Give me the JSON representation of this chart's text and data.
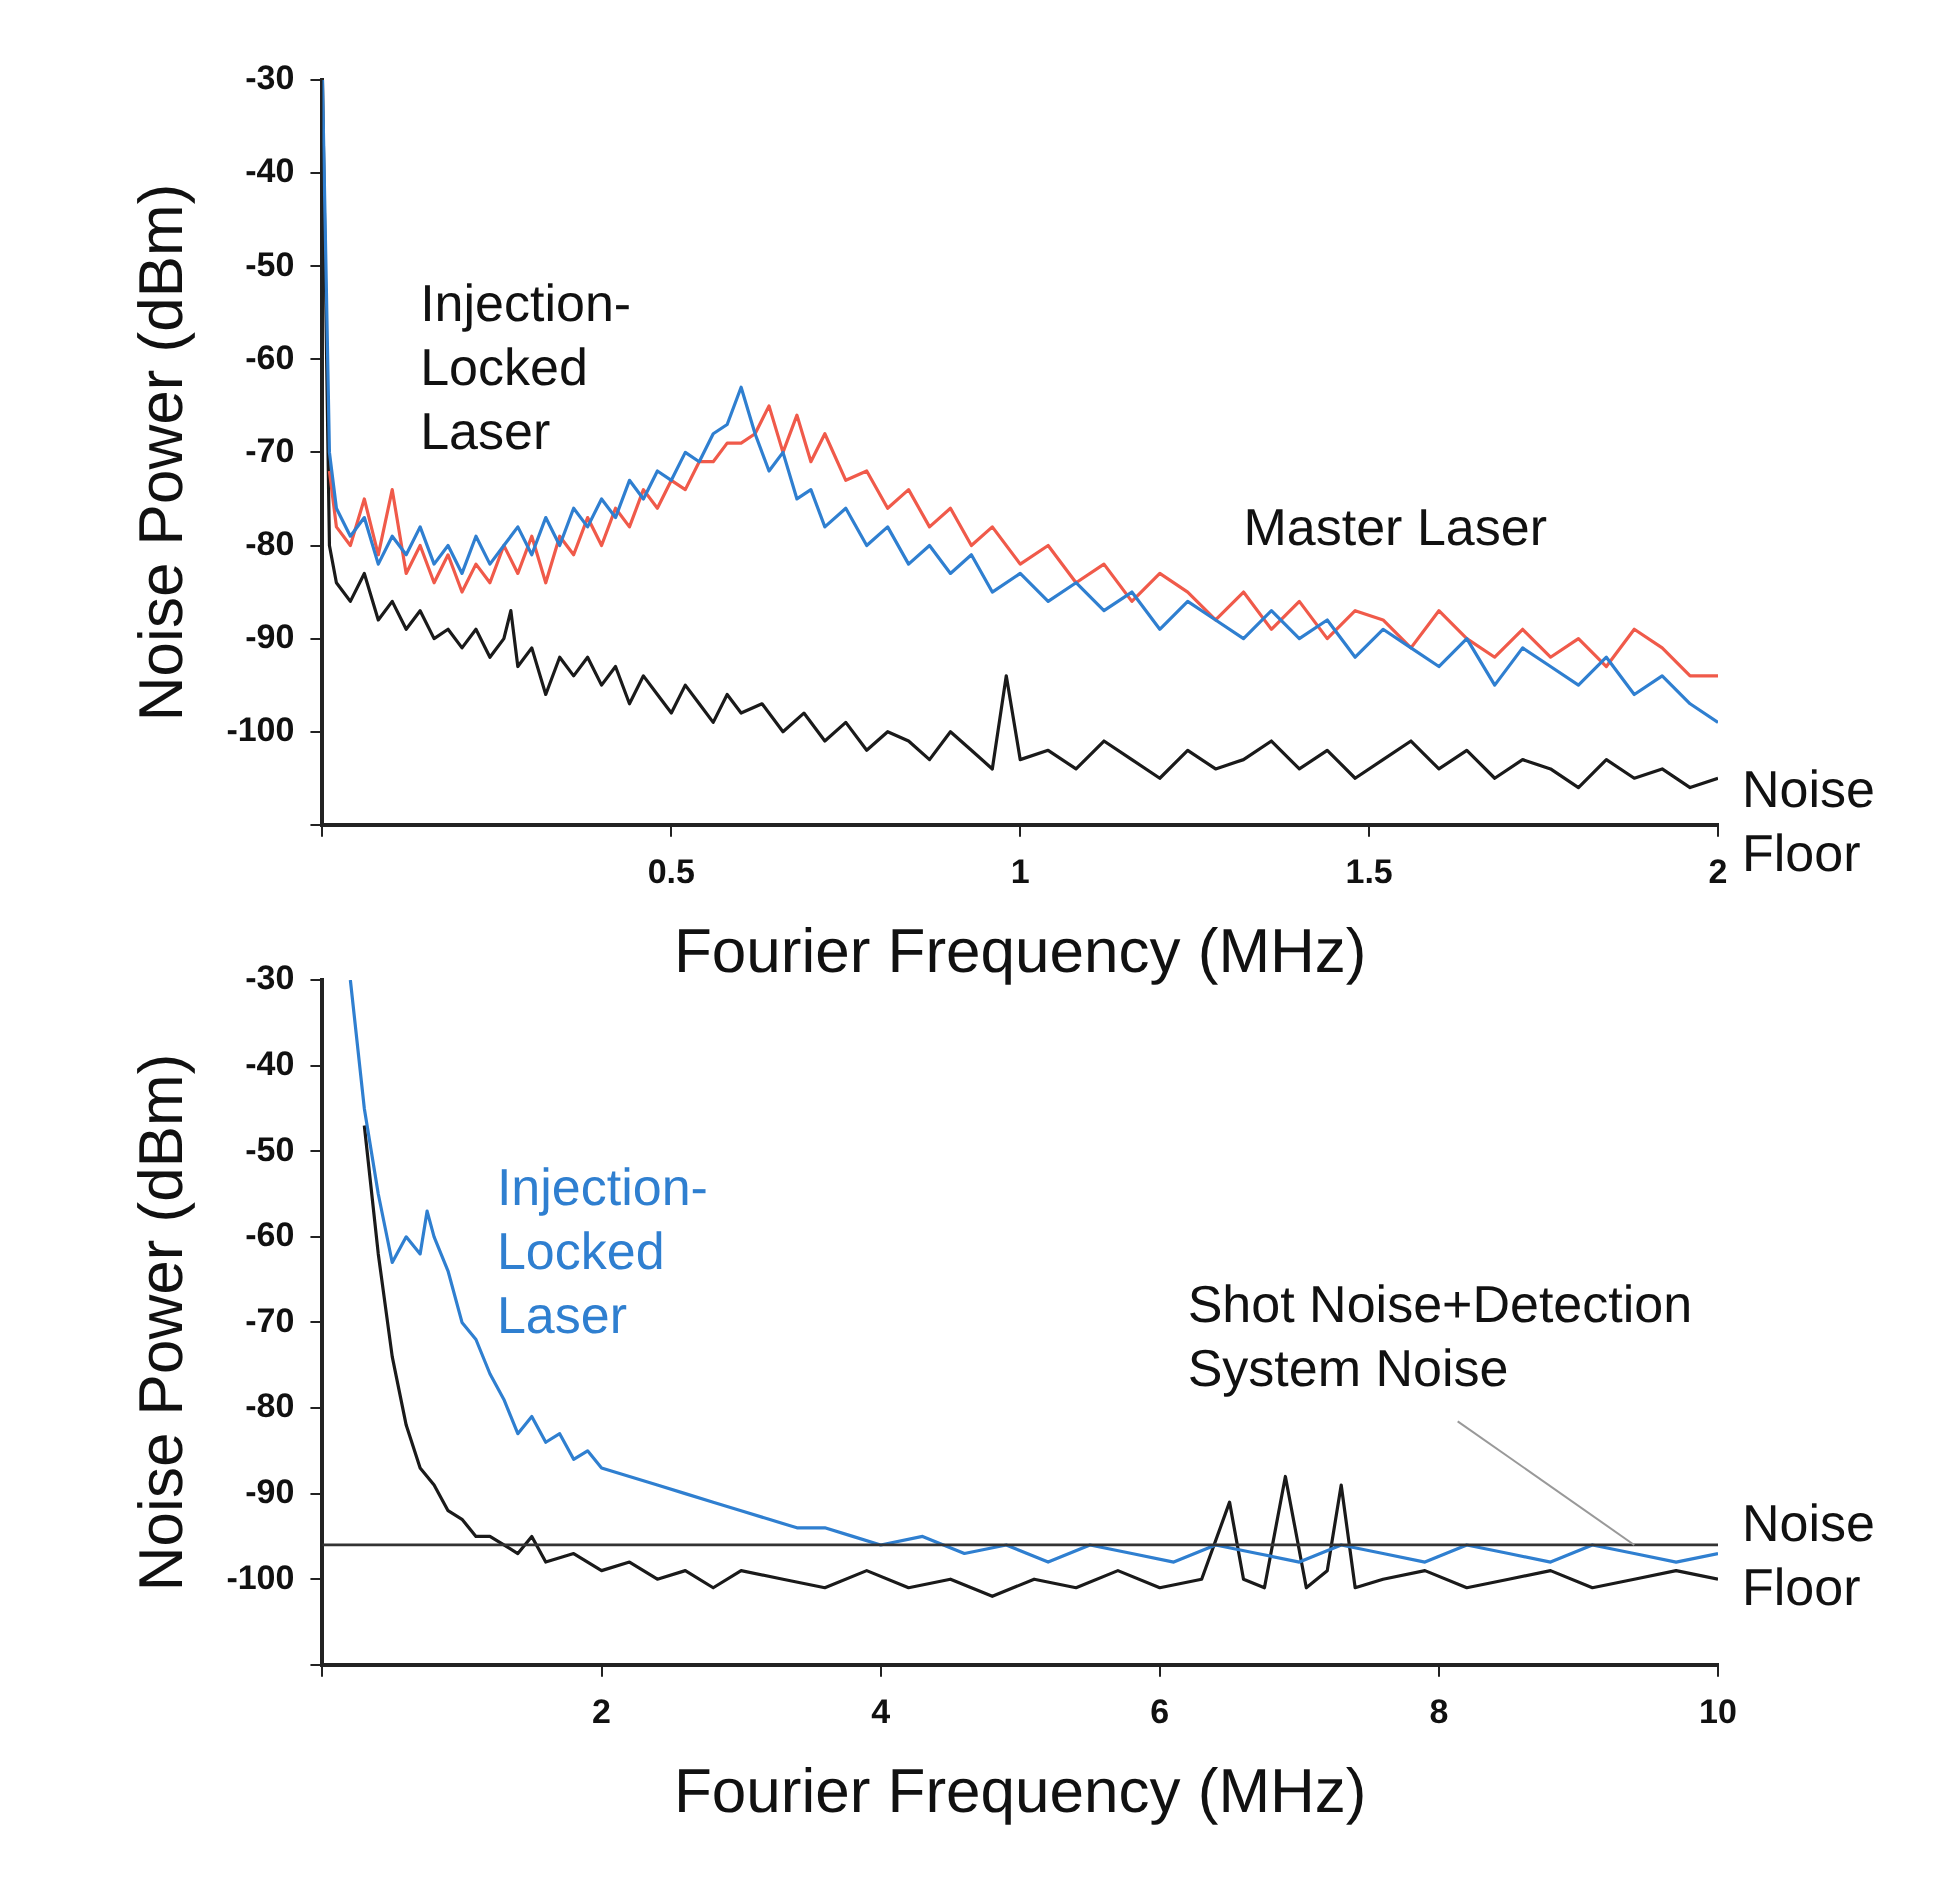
{
  "chart_data": [
    {
      "type": "line",
      "xlabel": "Fourier Frequency (MHz)",
      "ylabel": "Noise Power (dBm)",
      "xlim": [
        0,
        2
      ],
      "ylim": [
        -110,
        -30
      ],
      "xticks": [
        {
          "value": 0,
          "label": null
        },
        0.5,
        1,
        1.5,
        2
      ],
      "yticks": [
        {
          "value": -110,
          "label": null
        },
        -100,
        -90,
        -80,
        -70,
        -60,
        -50,
        -40,
        -30
      ],
      "legend": false,
      "marker": "none",
      "line_style": "solid",
      "series": [
        {
          "name": "Injection-Locked Laser",
          "color": "#2f7fd0",
          "x": [
            0,
            0.01,
            0.02,
            0.04,
            0.06,
            0.08,
            0.1,
            0.12,
            0.14,
            0.16,
            0.18,
            0.2,
            0.22,
            0.24,
            0.26,
            0.28,
            0.3,
            0.32,
            0.34,
            0.36,
            0.38,
            0.4,
            0.42,
            0.44,
            0.46,
            0.48,
            0.5,
            0.52,
            0.54,
            0.56,
            0.58,
            0.6,
            0.62,
            0.64,
            0.66,
            0.68,
            0.7,
            0.72,
            0.75,
            0.78,
            0.81,
            0.84,
            0.87,
            0.9,
            0.93,
            0.96,
            1,
            1.04,
            1.08,
            1.12,
            1.16,
            1.2,
            1.24,
            1.28,
            1.32,
            1.36,
            1.4,
            1.44,
            1.48,
            1.52,
            1.56,
            1.6,
            1.64,
            1.68,
            1.72,
            1.76,
            1.8,
            1.84,
            1.88,
            1.92,
            1.96,
            2
          ],
          "values": [
            -30,
            -70,
            -76,
            -79,
            -77,
            -82,
            -79,
            -81,
            -78,
            -82,
            -80,
            -83,
            -79,
            -82,
            -80,
            -78,
            -81,
            -77,
            -80,
            -76,
            -78,
            -75,
            -77,
            -73,
            -75,
            -72,
            -73,
            -70,
            -71,
            -68,
            -67,
            -63,
            -68,
            -72,
            -70,
            -75,
            -74,
            -78,
            -76,
            -80,
            -78,
            -82,
            -80,
            -83,
            -81,
            -85,
            -83,
            -86,
            -84,
            -87,
            -85,
            -89,
            -86,
            -88,
            -90,
            -87,
            -90,
            -88,
            -92,
            -89,
            -91,
            -93,
            -90,
            -95,
            -91,
            -93,
            -95,
            -92,
            -96,
            -94,
            -97,
            -99
          ]
        },
        {
          "name": "Master Laser",
          "color": "#f05a4a",
          "x": [
            0.01,
            0.02,
            0.04,
            0.06,
            0.08,
            0.1,
            0.12,
            0.14,
            0.16,
            0.18,
            0.2,
            0.22,
            0.24,
            0.26,
            0.28,
            0.3,
            0.32,
            0.34,
            0.36,
            0.38,
            0.4,
            0.42,
            0.44,
            0.46,
            0.48,
            0.5,
            0.52,
            0.54,
            0.56,
            0.58,
            0.6,
            0.62,
            0.64,
            0.66,
            0.68,
            0.7,
            0.72,
            0.75,
            0.78,
            0.81,
            0.84,
            0.87,
            0.9,
            0.93,
            0.96,
            1,
            1.04,
            1.08,
            1.12,
            1.16,
            1.2,
            1.24,
            1.28,
            1.32,
            1.36,
            1.4,
            1.44,
            1.48,
            1.52,
            1.56,
            1.6,
            1.64,
            1.68,
            1.72,
            1.76,
            1.8,
            1.84,
            1.88,
            1.92,
            1.96,
            2
          ],
          "values": [
            -72,
            -78,
            -80,
            -75,
            -81,
            -74,
            -83,
            -80,
            -84,
            -81,
            -85,
            -82,
            -84,
            -80,
            -83,
            -79,
            -84,
            -79,
            -81,
            -77,
            -80,
            -76,
            -78,
            -74,
            -76,
            -73,
            -74,
            -71,
            -71,
            -69,
            -69,
            -68,
            -65,
            -70,
            -66,
            -71,
            -68,
            -73,
            -72,
            -76,
            -74,
            -78,
            -76,
            -80,
            -78,
            -82,
            -80,
            -84,
            -82,
            -86,
            -83,
            -85,
            -88,
            -85,
            -89,
            -86,
            -90,
            -87,
            -88,
            -91,
            -87,
            -90,
            -92,
            -89,
            -92,
            -90,
            -93,
            -89,
            -91,
            -94,
            -94
          ]
        },
        {
          "name": "Noise Floor",
          "color": "#1a1a1a",
          "x": [
            0,
            0.01,
            0.02,
            0.04,
            0.06,
            0.08,
            0.1,
            0.12,
            0.14,
            0.16,
            0.18,
            0.2,
            0.22,
            0.24,
            0.26,
            0.27,
            0.28,
            0.3,
            0.32,
            0.34,
            0.36,
            0.38,
            0.4,
            0.42,
            0.44,
            0.46,
            0.48,
            0.5,
            0.52,
            0.54,
            0.56,
            0.58,
            0.6,
            0.63,
            0.66,
            0.69,
            0.72,
            0.75,
            0.78,
            0.81,
            0.84,
            0.87,
            0.9,
            0.93,
            0.96,
            0.98,
            1,
            1.04,
            1.08,
            1.12,
            1.16,
            1.2,
            1.24,
            1.28,
            1.32,
            1.36,
            1.4,
            1.44,
            1.48,
            1.52,
            1.56,
            1.6,
            1.64,
            1.68,
            1.72,
            1.76,
            1.8,
            1.84,
            1.88,
            1.92,
            1.96,
            2
          ],
          "values": [
            -30,
            -80,
            -84,
            -86,
            -83,
            -88,
            -86,
            -89,
            -87,
            -90,
            -89,
            -91,
            -89,
            -92,
            -90,
            -87,
            -93,
            -91,
            -96,
            -92,
            -94,
            -92,
            -95,
            -93,
            -97,
            -94,
            -96,
            -98,
            -95,
            -97,
            -99,
            -96,
            -98,
            -97,
            -100,
            -98,
            -101,
            -99,
            -102,
            -100,
            -101,
            -103,
            -100,
            -102,
            -104,
            -94,
            -103,
            -102,
            -104,
            -101,
            -103,
            -105,
            -102,
            -104,
            -103,
            -101,
            -104,
            -102,
            -105,
            -103,
            -101,
            -104,
            -102,
            -105,
            -103,
            -104,
            -106,
            -103,
            -105,
            -104,
            -106,
            -105
          ]
        }
      ]
    },
    {
      "type": "line",
      "xlabel": "Fourier Frequency (MHz)",
      "ylabel": "Noise Power (dBm)",
      "xlim": [
        0,
        10
      ],
      "ylim": [
        -110,
        -30
      ],
      "xticks": [
        {
          "value": 0,
          "label": null
        },
        2,
        4,
        6,
        8,
        10
      ],
      "yticks": [
        {
          "value": -110,
          "label": null
        },
        -100,
        -90,
        -80,
        -70,
        -60,
        -50,
        -40,
        -30
      ],
      "legend": false,
      "marker": "none",
      "line_style": "solid",
      "ref_lines": [
        {
          "axis": "y",
          "value": -96,
          "label": "Noise Floor",
          "color": "#333333"
        }
      ],
      "annotations": [
        {
          "text": "Shot Noise+Detection System Noise",
          "x": 9.4,
          "y": -96
        }
      ],
      "series": [
        {
          "name": "Injection-Locked Laser",
          "color": "#2f7fd0",
          "x": [
            0.2,
            0.3,
            0.4,
            0.5,
            0.6,
            0.7,
            0.75,
            0.8,
            0.9,
            1,
            1.1,
            1.2,
            1.3,
            1.4,
            1.5,
            1.6,
            1.7,
            1.8,
            1.9,
            2,
            2.2,
            2.4,
            2.6,
            2.8,
            3,
            3.2,
            3.4,
            3.6,
            3.8,
            4,
            4.3,
            4.6,
            4.9,
            5.2,
            5.5,
            5.8,
            6.1,
            6.4,
            6.7,
            7,
            7.3,
            7.6,
            7.9,
            8.2,
            8.5,
            8.8,
            9.1,
            9.4,
            9.7,
            10
          ],
          "values": [
            -30,
            -45,
            -55,
            -63,
            -60,
            -62,
            -57,
            -60,
            -64,
            -70,
            -72,
            -76,
            -79,
            -83,
            -81,
            -84,
            -83,
            -86,
            -85,
            -87,
            -88,
            -89,
            -90,
            -91,
            -92,
            -93,
            -94,
            -94,
            -95,
            -96,
            -95,
            -97,
            -96,
            -98,
            -96,
            -97,
            -98,
            -96,
            -97,
            -98,
            -96,
            -97,
            -98,
            -96,
            -97,
            -98,
            -96,
            -97,
            -98,
            -97
          ]
        },
        {
          "color": "#1a1a1a",
          "x": [
            0.3,
            0.4,
            0.5,
            0.6,
            0.7,
            0.8,
            0.9,
            1,
            1.1,
            1.2,
            1.3,
            1.4,
            1.5,
            1.6,
            1.8,
            2,
            2.2,
            2.4,
            2.6,
            2.8,
            3,
            3.3,
            3.6,
            3.9,
            4.2,
            4.5,
            4.8,
            5.1,
            5.4,
            5.7,
            6,
            6.3,
            6.5,
            6.6,
            6.75,
            6.9,
            7.05,
            7.2,
            7.3,
            7.4,
            7.6,
            7.9,
            8.2,
            8.5,
            8.8,
            9.1,
            9.4,
            9.7,
            10
          ],
          "values": [
            -47,
            -62,
            -74,
            -82,
            -87,
            -89,
            -92,
            -93,
            -95,
            -95,
            -96,
            -97,
            -95,
            -98,
            -97,
            -99,
            -98,
            -100,
            -99,
            -101,
            -99,
            -100,
            -101,
            -99,
            -101,
            -100,
            -102,
            -100,
            -101,
            -99,
            -101,
            -100,
            -91,
            -100,
            -101,
            -88,
            -101,
            -99,
            -89,
            -101,
            -100,
            -99,
            -101,
            -100,
            -99,
            -101,
            -100,
            -99,
            -100
          ]
        }
      ]
    }
  ]
}
